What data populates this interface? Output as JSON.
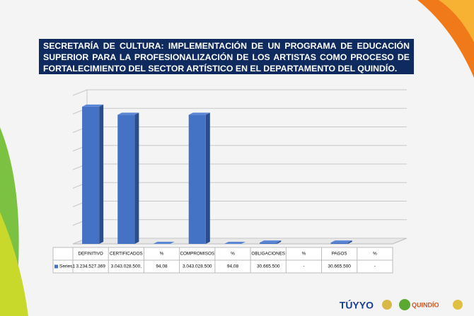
{
  "chart_data": {
    "type": "bar3d",
    "title": "SECRETARÍA DE CULTURA: IMPLEMENTACIÓN DE UN PROGRAMA DE EDUCACIÓN SUPERIOR PARA LA PROFESIONALIZACIÓN DE LOS ARTISTAS COMO PROCESO DE FORTALECIMIENTO DEL SECTOR ARTÍSTICO EN EL DEPARTAMENTO DEL QUINDÍO.",
    "categories": [
      "DEFINITIVO",
      "CERTIFICADOS",
      "%",
      "COMPROMISOS",
      "%",
      "OBLIGACIONES",
      "%",
      "PAGOS",
      "%"
    ],
    "series": [
      {
        "name": "Series1",
        "color": "#4472c4",
        "values": [
          3234527369,
          3043028500,
          94.08,
          3043028500,
          94.08,
          30665500,
          null,
          30665500,
          null
        ],
        "value_labels": [
          "3.234.527.369",
          "3.043.028.500,",
          "94,08",
          "3.043.028.500",
          "94,08",
          "30.665.500",
          "-",
          "30.665.500",
          "-"
        ]
      }
    ],
    "ylim": [
      0,
      3500000000
    ],
    "grid": true,
    "data_table": true
  },
  "footer": {
    "logo_1": "TÚYYO",
    "logo_2": "QUINDÍO"
  }
}
